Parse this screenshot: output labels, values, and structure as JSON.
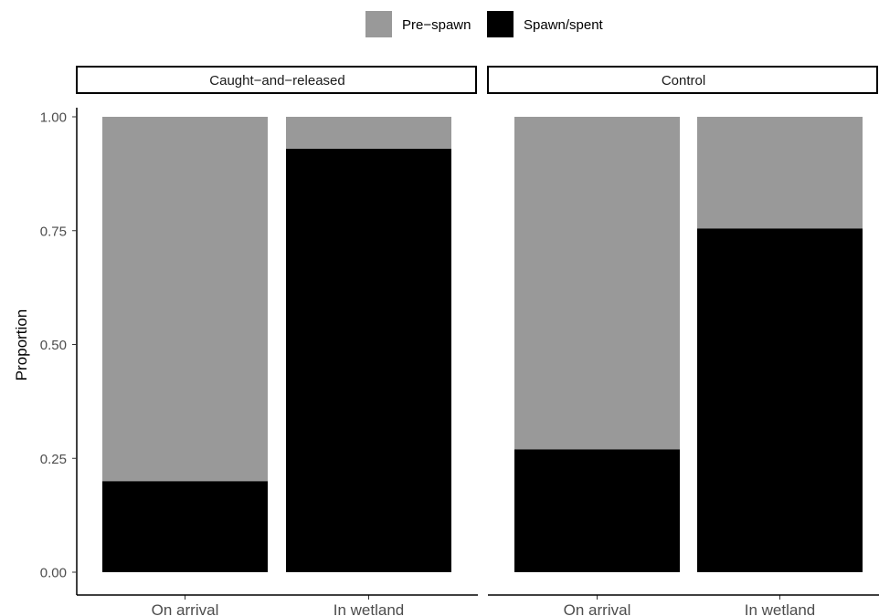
{
  "chart_data": {
    "type": "bar",
    "stacked": true,
    "faceted": true,
    "ylabel": "Proportion",
    "xlabel": "",
    "ylim": [
      0,
      1
    ],
    "yticks": [
      "0.00",
      "0.25",
      "0.50",
      "0.75",
      "1.00"
    ],
    "legend": {
      "position": "top",
      "entries": [
        {
          "name": "Pre−spawn",
          "color": "#999999"
        },
        {
          "name": "Spawn/spent",
          "color": "#000000"
        }
      ]
    },
    "categories": [
      "On arrival",
      "In wetland"
    ],
    "panels": [
      {
        "title": "Caught−and−released",
        "series": [
          {
            "name": "Spawn/spent",
            "values": [
              0.2,
              0.93
            ]
          },
          {
            "name": "Pre−spawn",
            "values": [
              0.8,
              0.07
            ]
          }
        ]
      },
      {
        "title": "Control",
        "series": [
          {
            "name": "Spawn/spent",
            "values": [
              0.27,
              0.755
            ]
          },
          {
            "name": "Pre−spawn",
            "values": [
              0.73,
              0.245
            ]
          }
        ]
      }
    ]
  }
}
